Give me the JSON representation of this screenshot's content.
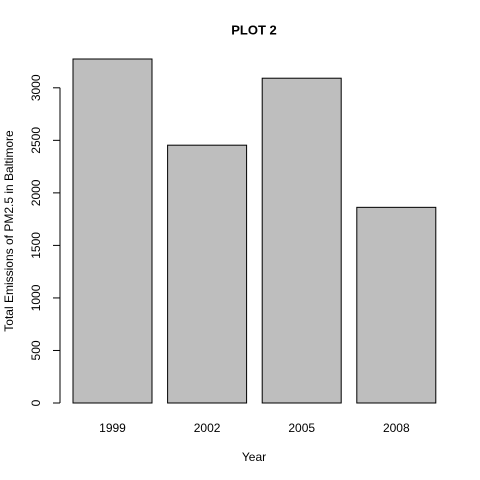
{
  "chart_data": {
    "type": "bar",
    "title": "PLOT 2",
    "x_label": "Year",
    "y_label": "Total Emissions of PM2.5 in Baltimore",
    "categories": [
      "1999",
      "2002",
      "2005",
      "2008"
    ],
    "values": [
      3274.18,
      2453.92,
      3091.35,
      1862.28
    ],
    "color": "#bebebe",
    "ylim": [
      0,
      3274.18
    ],
    "yticks": [
      0,
      500,
      1000,
      1500,
      2000,
      2500,
      3000
    ],
    "grid": false
  }
}
